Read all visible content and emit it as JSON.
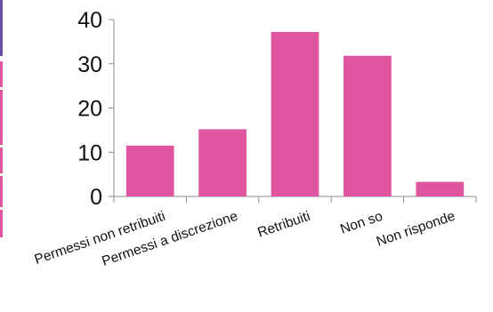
{
  "chart_data": {
    "type": "bar",
    "categories": [
      "Permessi non retribuiti",
      "Permessi a discrezione",
      "Retribuiti",
      "Non so",
      "Non risponde"
    ],
    "values": [
      11.5,
      15.2,
      37.2,
      31.8,
      3.3
    ],
    "ylim": [
      0,
      40
    ],
    "yticks": [
      0,
      10,
      20,
      30,
      40
    ],
    "grid": false,
    "bar_color": "#e0559f",
    "axis_color": "#8c8c8c",
    "text_color": "#111111"
  },
  "side_strip": {
    "top_color": "#6b4fa6",
    "segment_color": "#e0559f"
  }
}
